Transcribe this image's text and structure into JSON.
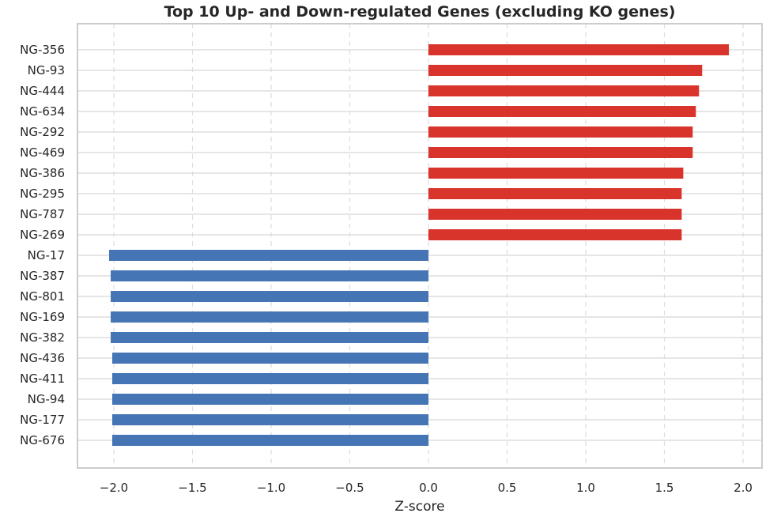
{
  "chart_data": {
    "type": "bar",
    "orientation": "horizontal",
    "title": "Top 10 Up- and Down-regulated Genes (excluding KO genes)",
    "xlabel": "Z-score",
    "ylabel": "",
    "xlim": [
      -2.22,
      2.12
    ],
    "xticks": [
      -2.0,
      -1.5,
      -1.0,
      -0.5,
      0.0,
      0.5,
      1.0,
      1.5,
      2.0
    ],
    "xtick_labels": [
      "−2.0",
      "−1.5",
      "−1.0",
      "−0.5",
      "0.0",
      "0.5",
      "1.0",
      "1.5",
      "2.0"
    ],
    "grid": true,
    "colors": {
      "up": "#d9342b",
      "down": "#4575b4",
      "grid": "#dddddd",
      "spine": "#cccccc"
    },
    "categories": [
      "NG-356",
      "NG-93",
      "NG-444",
      "NG-634",
      "NG-292",
      "NG-469",
      "NG-386",
      "NG-295",
      "NG-787",
      "NG-269",
      "NG-17",
      "NG-387",
      "NG-801",
      "NG-169",
      "NG-382",
      "NG-436",
      "NG-411",
      "NG-94",
      "NG-177",
      "NG-676"
    ],
    "values": [
      1.91,
      1.74,
      1.72,
      1.7,
      1.68,
      1.68,
      1.62,
      1.61,
      1.61,
      1.61,
      -2.03,
      -2.02,
      -2.02,
      -2.02,
      -2.02,
      -2.01,
      -2.01,
      -2.01,
      -2.01,
      -2.01
    ]
  }
}
